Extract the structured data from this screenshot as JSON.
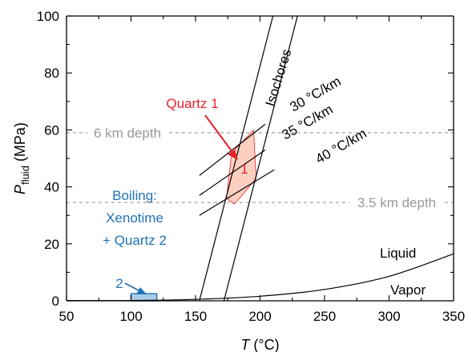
{
  "chart_data": {
    "type": "line",
    "title": "",
    "xlabel": {
      "main": "T",
      "unit": "(°C)"
    },
    "ylabel": {
      "main": "P",
      "sub": "fluid",
      "unit": "(MPa)"
    },
    "xlim": [
      50,
      350
    ],
    "ylim": [
      0,
      100
    ],
    "xticks": [
      50,
      100,
      150,
      200,
      250,
      300,
      350
    ],
    "yticks": [
      0,
      20,
      40,
      60,
      80,
      100
    ],
    "grid": false,
    "colors": {
      "axis": "#000000",
      "line": "#000000",
      "depth": "#999999",
      "quartz1": "#e8202a",
      "boiling": "#1f72b8",
      "field_fill": "#fbd0c0",
      "box_fill": "#a9cde8"
    },
    "series": [
      {
        "name": "Isochores",
        "role": "isochore-left",
        "points": [
          [
            153,
            0
          ],
          [
            210,
            100
          ]
        ]
      },
      {
        "role": "isochore-right",
        "points": [
          [
            172,
            0
          ],
          [
            229,
            100
          ]
        ]
      },
      {
        "name": "30 °C/km",
        "role": "gradient",
        "points": [
          [
            153,
            44
          ],
          [
            204,
            62
          ]
        ]
      },
      {
        "name": "35 °C/km",
        "role": "gradient",
        "points": [
          [
            153,
            37
          ],
          [
            204,
            53
          ]
        ]
      },
      {
        "name": "40 °C/km",
        "role": "gradient",
        "points": [
          [
            153,
            30
          ],
          [
            211,
            46
          ]
        ]
      },
      {
        "name": "Liquid-Vapor curve",
        "role": "boiling-curve",
        "points": [
          [
            50,
            0.1
          ],
          [
            100,
            0.1
          ],
          [
            150,
            0.5
          ],
          [
            200,
            1.6
          ],
          [
            250,
            4
          ],
          [
            300,
            8.6
          ],
          [
            350,
            16.5
          ]
        ]
      }
    ],
    "reference_lines": [
      {
        "label": "6 km depth",
        "y": 59
      },
      {
        "label": "3.5 km depth",
        "y": 34.5
      }
    ],
    "regions": [
      {
        "name": "Quartz 1 field",
        "label": "1",
        "polygon": [
          [
            178,
            52
          ],
          [
            195,
            60
          ],
          [
            197,
            43
          ],
          [
            186,
            37
          ],
          [
            180,
            34
          ],
          [
            174,
            36
          ]
        ]
      },
      {
        "name": "Boiling box",
        "label": "2",
        "polygon": [
          [
            100,
            0
          ],
          [
            120,
            0
          ],
          [
            120,
            2.5
          ],
          [
            100,
            2.5
          ]
        ]
      }
    ],
    "annotations": {
      "isochores": "Isochores",
      "quartz1": "Quartz 1",
      "boiling": [
        "Boiling:",
        "Xenotime",
        "+ Quartz 2"
      ],
      "liquid": "Liquid",
      "vapor": "Vapor"
    }
  }
}
